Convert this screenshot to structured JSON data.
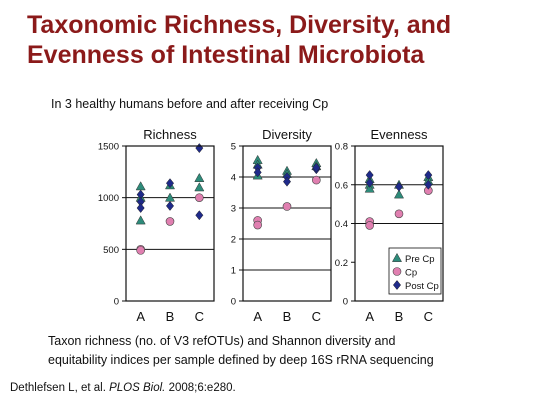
{
  "slide": {
    "title_line1": "Taxonomic Richness, Diversity, and",
    "title_line2": "Evenness of Intestinal Microbiota",
    "subtitle": "In 3 healthy humans before and after receiving Cp",
    "caption_line1": "Taxon richness (no. of V3 refOTUs) and Shannon diversity and",
    "caption_line2": "equitability indices per sample defined by deep 16S rRNA sequencing",
    "citation_authors": "Dethlefsen L, et al.",
    "citation_journal": "PLOS Biol.",
    "citation_rest": "2008;6:e280."
  },
  "colors": {
    "title": "#8b1a1a",
    "pre_cp": "#2e8b7a",
    "cp": "#e07fb0",
    "post_cp": "#1f2a8a"
  },
  "chart_data": [
    {
      "type": "scatter",
      "title": "Richness",
      "categories": [
        "A",
        "B",
        "C"
      ],
      "ylim": [
        0,
        1500
      ],
      "yticks": [
        0,
        500,
        1000,
        1500
      ],
      "hlines": [
        500,
        1000
      ],
      "series": [
        {
          "name": "Pre Cp",
          "marker": "triangle",
          "points": [
            [
              0,
              1110
            ],
            [
              0,
              1000
            ],
            [
              0,
              780
            ],
            [
              1,
              1120
            ],
            [
              1,
              1000
            ],
            [
              2,
              1190
            ],
            [
              2,
              1100
            ]
          ]
        },
        {
          "name": "Cp",
          "marker": "circle",
          "points": [
            [
              0,
              500
            ],
            [
              0,
              490
            ],
            [
              1,
              770
            ],
            [
              2,
              1000
            ]
          ]
        },
        {
          "name": "Post Cp",
          "marker": "diamond",
          "points": [
            [
              0,
              1030
            ],
            [
              0,
              960
            ],
            [
              0,
              900
            ],
            [
              1,
              1140
            ],
            [
              1,
              920
            ],
            [
              2,
              1480
            ],
            [
              2,
              830
            ]
          ]
        }
      ]
    },
    {
      "type": "scatter",
      "title": "Diversity",
      "categories": [
        "A",
        "B",
        "C"
      ],
      "ylim": [
        0,
        5
      ],
      "yticks": [
        0,
        1,
        2,
        3,
        4,
        5
      ],
      "hlines": [
        1,
        2,
        3,
        4
      ],
      "series": [
        {
          "name": "Pre Cp",
          "marker": "triangle",
          "points": [
            [
              0,
              4.55
            ],
            [
              0,
              4.4
            ],
            [
              0,
              4.05
            ],
            [
              1,
              4.2
            ],
            [
              1,
              4.1
            ],
            [
              2,
              4.45
            ],
            [
              2,
              4.35
            ]
          ]
        },
        {
          "name": "Cp",
          "marker": "circle",
          "points": [
            [
              0,
              2.6
            ],
            [
              0,
              2.45
            ],
            [
              1,
              3.05
            ],
            [
              2,
              3.9
            ]
          ]
        },
        {
          "name": "Post Cp",
          "marker": "diamond",
          "points": [
            [
              0,
              4.3
            ],
            [
              0,
              4.15
            ],
            [
              1,
              4.0
            ],
            [
              1,
              3.85
            ],
            [
              2,
              4.25
            ],
            [
              2,
              4.3
            ]
          ]
        }
      ]
    },
    {
      "type": "scatter",
      "title": "Evenness",
      "categories": [
        "A",
        "B",
        "C"
      ],
      "ylim": [
        0,
        0.8
      ],
      "yticks": [
        "0",
        "0.2",
        "0.4",
        "0.6",
        "0.8"
      ],
      "hlines": [
        0.4,
        0.6
      ],
      "legend": "bottom-right",
      "series": [
        {
          "name": "Pre Cp",
          "marker": "triangle",
          "points": [
            [
              0,
              0.63
            ],
            [
              0,
              0.6
            ],
            [
              0,
              0.58
            ],
            [
              1,
              0.6
            ],
            [
              1,
              0.55
            ],
            [
              2,
              0.64
            ],
            [
              2,
              0.62
            ]
          ]
        },
        {
          "name": "Cp",
          "marker": "circle",
          "points": [
            [
              0,
              0.41
            ],
            [
              0,
              0.39
            ],
            [
              1,
              0.45
            ],
            [
              2,
              0.57
            ]
          ]
        },
        {
          "name": "Post Cp",
          "marker": "diamond",
          "points": [
            [
              0,
              0.65
            ],
            [
              0,
              0.61
            ],
            [
              1,
              0.59
            ],
            [
              2,
              0.65
            ],
            [
              2,
              0.6
            ]
          ]
        }
      ]
    }
  ]
}
